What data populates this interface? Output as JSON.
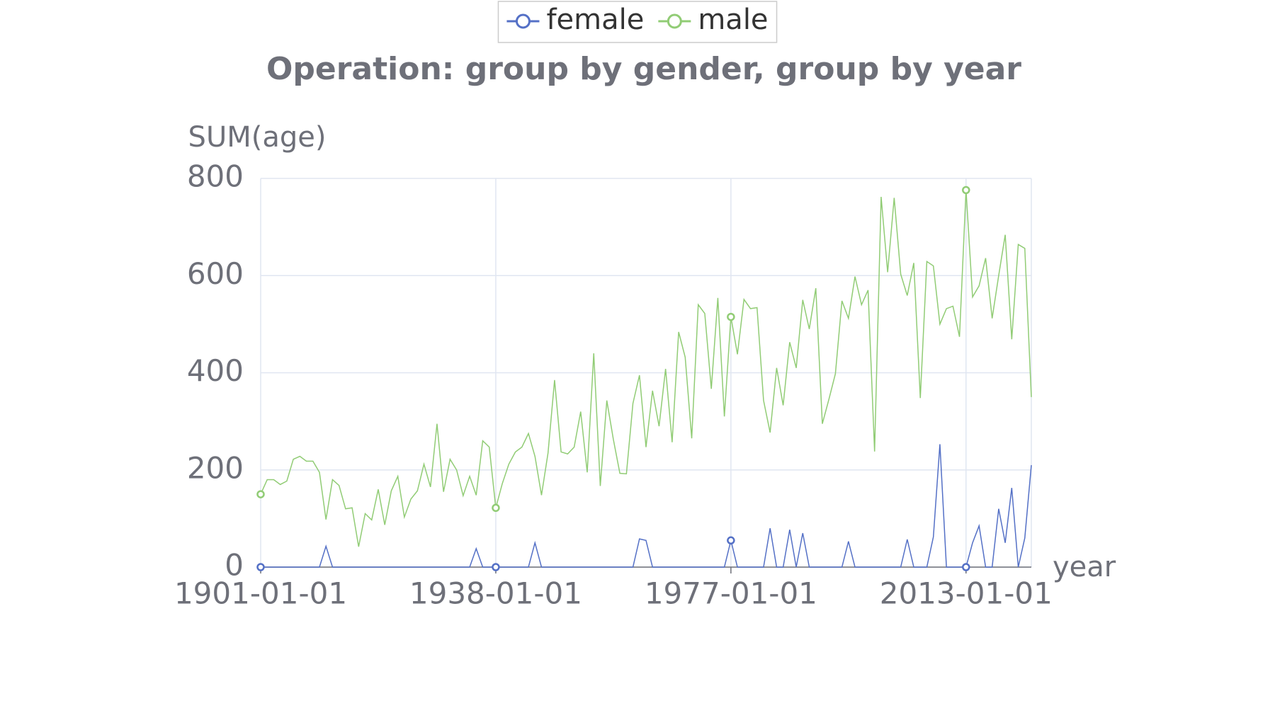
{
  "chart_data": {
    "type": "line",
    "title": "Operation: group by gender, group by year",
    "y_label": "SUM(age)",
    "x_label": "year",
    "legend": "top",
    "grid": true,
    "categories": [
      "1901-01-01",
      null,
      null,
      null,
      null,
      null,
      null,
      null,
      null,
      null,
      null,
      null,
      null,
      null,
      null,
      null,
      null,
      null,
      null,
      null,
      null,
      null,
      null,
      null,
      null,
      null,
      null,
      null,
      null,
      null,
      null,
      null,
      null,
      null,
      null,
      null,
      "1938-01-01",
      null,
      null,
      null,
      null,
      null,
      null,
      null,
      null,
      null,
      null,
      null,
      null,
      null,
      null,
      null,
      null,
      null,
      null,
      null,
      null,
      null,
      null,
      null,
      null,
      null,
      null,
      null,
      null,
      null,
      null,
      null,
      null,
      null,
      null,
      null,
      "1977-01-01",
      null,
      null,
      null,
      null,
      null,
      null,
      null,
      null,
      null,
      null,
      null,
      null,
      null,
      null,
      null,
      null,
      null,
      null,
      null,
      null,
      null,
      null,
      null,
      null,
      null,
      null,
      null,
      null,
      null,
      null,
      null,
      null,
      null,
      null,
      null,
      "2013-01-01",
      null,
      null,
      null,
      null,
      null,
      null,
      null,
      null,
      null,
      null
    ],
    "ylim": [
      0,
      800
    ],
    "yticks": [
      0,
      200,
      400,
      600,
      800
    ],
    "series": [
      {
        "name": "female",
        "color": "#5470c6",
        "values": [
          0,
          0,
          0,
          0,
          0,
          0,
          0,
          0,
          0,
          0,
          43,
          0,
          0,
          0,
          0,
          0,
          0,
          0,
          0,
          0,
          0,
          0,
          0,
          0,
          0,
          0,
          0,
          0,
          0,
          0,
          0,
          0,
          0,
          38,
          0,
          0,
          0,
          0,
          0,
          0,
          0,
          0,
          50,
          0,
          0,
          0,
          0,
          0,
          0,
          0,
          0,
          0,
          0,
          0,
          0,
          0,
          0,
          0,
          58,
          55,
          0,
          0,
          0,
          0,
          0,
          0,
          0,
          0,
          0,
          0,
          0,
          0,
          55,
          0,
          0,
          0,
          0,
          0,
          80,
          0,
          0,
          77,
          0,
          70,
          0,
          0,
          0,
          0,
          0,
          0,
          53,
          0,
          0,
          0,
          0,
          0,
          0,
          0,
          0,
          57,
          0,
          0,
          0,
          62,
          253,
          0,
          0,
          0,
          0,
          50,
          85,
          0,
          0,
          120,
          50,
          163,
          0,
          60,
          210
        ]
      },
      {
        "name": "male",
        "color": "#91cc75",
        "values": [
          150,
          180,
          180,
          170,
          177,
          222,
          228,
          218,
          218,
          195,
          98,
          180,
          168,
          120,
          122,
          42,
          110,
          97,
          160,
          87,
          157,
          187,
          103,
          140,
          157,
          212,
          165,
          295,
          155,
          222,
          200,
          147,
          187,
          148,
          260,
          247,
          122,
          172,
          212,
          237,
          247,
          275,
          228,
          148,
          235,
          385,
          237,
          233,
          247,
          320,
          195,
          440,
          167,
          343,
          263,
          193,
          192,
          337,
          395,
          247,
          363,
          290,
          408,
          257,
          484,
          432,
          265,
          540,
          522,
          367,
          554,
          310,
          515,
          438,
          551,
          532,
          534,
          343,
          277,
          410,
          333,
          463,
          410,
          550,
          490,
          574,
          295,
          345,
          398,
          548,
          512,
          598,
          540,
          570,
          238,
          762,
          607,
          760,
          603,
          559,
          626,
          348,
          629,
          620,
          500,
          532,
          537,
          474,
          776,
          556,
          579,
          636,
          512,
          600,
          684,
          469,
          664,
          656,
          350
        ]
      }
    ]
  }
}
